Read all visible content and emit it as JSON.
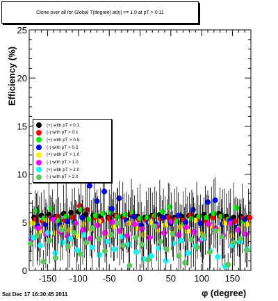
{
  "title": "Clone  over all for Global T(degree) at|η| <= 1.0 at pT > 0.11",
  "timestamp": "Sat Dec 17 16:30:45 2011",
  "chart_data": {
    "type": "scatter",
    "title": "Clone  over all for Global T(degree) at|η| <= 1.0 at pT > 0.11",
    "xlabel": "φ (degree)",
    "ylabel": "Efficiency (%)",
    "xlim": [
      -180,
      180
    ],
    "ylim": [
      0,
      25
    ],
    "xticks": [
      -150,
      -100,
      -50,
      0,
      50,
      100,
      150
    ],
    "xtick_labels": [
      "-150",
      "-100",
      "-50",
      "0",
      "50",
      "100",
      "150"
    ],
    "yticks": [
      0,
      5,
      10,
      15,
      20,
      25
    ],
    "ytick_labels": [
      "0",
      "5",
      "10",
      "15",
      "20",
      "25"
    ],
    "grid": false,
    "legend_position": "left-middle",
    "series": [
      {
        "name": "(+) with pT > 0.1",
        "color": "#000000",
        "x": [
          -172,
          -160,
          -148,
          -136,
          -124,
          -112,
          -100,
          -88,
          -76,
          -64,
          -52,
          -40,
          -28,
          -16,
          -4,
          8,
          20,
          32,
          44,
          56,
          68,
          80,
          92,
          104,
          116,
          128,
          140,
          152,
          164,
          176
        ],
        "y": [
          5.5,
          5.7,
          5.8,
          5.6,
          5.9,
          6.0,
          6.1,
          5.8,
          5.7,
          5.6,
          5.5,
          5.7,
          5.6,
          5.8,
          5.6,
          5.5,
          5.7,
          5.8,
          5.6,
          5.5,
          5.6,
          5.7,
          5.6,
          5.8,
          5.7,
          5.9,
          5.6,
          5.5,
          5.6,
          5.5
        ]
      },
      {
        "name": "(-) with pT > 0.1",
        "color": "#ff0000",
        "x": [
          -170,
          -158,
          -146,
          -134,
          -122,
          -110,
          -98,
          -86,
          -74,
          -62,
          -50,
          -38,
          -26,
          -14,
          -2,
          10,
          22,
          34,
          46,
          58,
          70,
          82,
          94,
          106,
          118,
          130,
          142,
          154,
          166,
          178
        ],
        "y": [
          5.3,
          5.1,
          5.4,
          5.6,
          5.2,
          5.5,
          6.7,
          6.3,
          5.5,
          5.2,
          5.4,
          5.7,
          5.6,
          5.9,
          5.3,
          5.2,
          5.6,
          5.4,
          5.5,
          5.3,
          5.2,
          5.7,
          5.4,
          5.2,
          5.5,
          5.6,
          5.3,
          5.1,
          5.4,
          5.5
        ]
      },
      {
        "name": "(+) with pT > 0.5",
        "color": "#00ee00",
        "x": [
          -168,
          -156,
          -144,
          -132,
          -120,
          -108,
          -96,
          -84,
          -72,
          -60,
          -48,
          -36,
          -24,
          -12,
          0,
          12,
          24,
          36,
          48,
          60,
          72,
          84,
          96,
          108,
          120,
          132,
          144,
          156,
          168
        ],
        "y": [
          6.2,
          5.4,
          6.4,
          5.2,
          5.6,
          5.0,
          6.3,
          5.3,
          5.7,
          5.9,
          6.1,
          5.6,
          5.8,
          6.0,
          5.4,
          5.5,
          5.7,
          6.1,
          6.6,
          5.1,
          4.8,
          5.4,
          5.6,
          5.5,
          5.9,
          5.6,
          5.3,
          6.5,
          5.1
        ]
      },
      {
        "name": "(-) with pT > 0.5",
        "color": "#0000ff",
        "x": [
          -166,
          -154,
          -142,
          -130,
          -118,
          -106,
          -94,
          -82,
          -70,
          -58,
          -46,
          -34,
          -22,
          -10,
          2,
          14,
          26,
          38,
          50,
          62,
          74,
          86,
          98,
          110,
          122,
          134,
          146,
          158,
          170
        ],
        "y": [
          4.6,
          4.8,
          5.4,
          4.7,
          5.1,
          5.0,
          5.5,
          8.8,
          7.2,
          8.2,
          6.4,
          7.5,
          5.2,
          5.6,
          4.7,
          5.0,
          4.8,
          5.5,
          4.9,
          5.7,
          5.0,
          6.3,
          4.9,
          7.1,
          7.3,
          4.8,
          5.2,
          4.5,
          5.3
        ]
      },
      {
        "name": "(+) with pT > 1.0",
        "color": "#ffee00",
        "x": [
          -175,
          -163,
          -151,
          -139,
          -127,
          -115,
          -103,
          -91,
          -79,
          -67,
          -55,
          -43,
          -31,
          -19,
          -7,
          5,
          17,
          29,
          41,
          53,
          65,
          77,
          89,
          101,
          113,
          125,
          137,
          149,
          161,
          173
        ],
        "y": [
          4.9,
          4.1,
          5.2,
          3.9,
          4.5,
          4.2,
          3.6,
          4.8,
          4.3,
          5.1,
          3.8,
          4.6,
          4.0,
          4.9,
          4.4,
          3.7,
          5.0,
          4.2,
          4.7,
          3.9,
          4.5,
          4.1,
          5.2,
          3.8,
          4.6,
          4.3,
          4.9,
          3.6,
          4.4,
          4.8
        ]
      },
      {
        "name": "(-) with pT > 1.0",
        "color": "#ff00ff",
        "x": [
          -177,
          -165,
          -153,
          -141,
          -129,
          -117,
          -105,
          -93,
          -81,
          -69,
          -57,
          -45,
          -33,
          -21,
          -9,
          3,
          15,
          27,
          39,
          51,
          63,
          75,
          87,
          99,
          111,
          123,
          135,
          147,
          159,
          171
        ],
        "y": [
          3.2,
          4.4,
          3.8,
          5.3,
          4.0,
          3.5,
          4.9,
          4.2,
          3.3,
          4.7,
          3.9,
          5.0,
          4.1,
          3.6,
          4.8,
          4.3,
          3.4,
          4.6,
          3.9,
          5.1,
          3.7,
          4.5,
          4.0,
          3.2,
          4.8,
          4.4,
          3.6,
          4.9,
          4.2,
          3.8
        ]
      },
      {
        "name": "(+) with pT > 2.0",
        "color": "#00ffff",
        "x": [
          -174,
          -162,
          -150,
          -138,
          -126,
          -114,
          -102,
          -90,
          -78,
          -66,
          -54,
          -42,
          -30,
          -18,
          -6,
          6,
          18,
          30,
          42,
          54,
          66,
          78,
          90,
          102,
          114,
          126,
          138,
          150,
          162,
          174
        ],
        "y": [
          3.4,
          2.6,
          3.9,
          1.8,
          2.9,
          3.3,
          2.1,
          3.7,
          2.4,
          1.6,
          3.0,
          2.2,
          3.5,
          2.7,
          1.9,
          1.2,
          1.5,
          2.3,
          1.0,
          2.8,
          3.1,
          1.8,
          2.5,
          3.3,
          2.0,
          1.4,
          0.4,
          2.6,
          3.0,
          2.2
        ]
      },
      {
        "name": "(-) with pT > 2.0",
        "color": "#5cc85c",
        "x": [
          -178,
          -167,
          -157,
          -147,
          -137,
          -127,
          -117,
          -107,
          -97,
          -87,
          -77,
          -67,
          -57,
          -47,
          -37,
          -27,
          -17,
          -7,
          3,
          13,
          23,
          33,
          43,
          53,
          63,
          73,
          83,
          93,
          103,
          113,
          123,
          133,
          143,
          153,
          163,
          173
        ],
        "y": [
          2.8,
          3.6,
          0.9,
          3.1,
          1.3,
          4.2,
          2.5,
          3.9,
          1.7,
          2.9,
          4.4,
          3.3,
          2.0,
          3.7,
          4.9,
          2.6,
          0.5,
          3.4,
          2.7,
          1.1,
          4.6,
          3.0,
          2.2,
          3.8,
          1.5,
          0.8,
          3.2,
          2.4,
          3.6,
          1.9,
          4.1,
          3.5,
          0.6,
          2.9,
          3.3,
          2.1
        ]
      }
    ]
  }
}
